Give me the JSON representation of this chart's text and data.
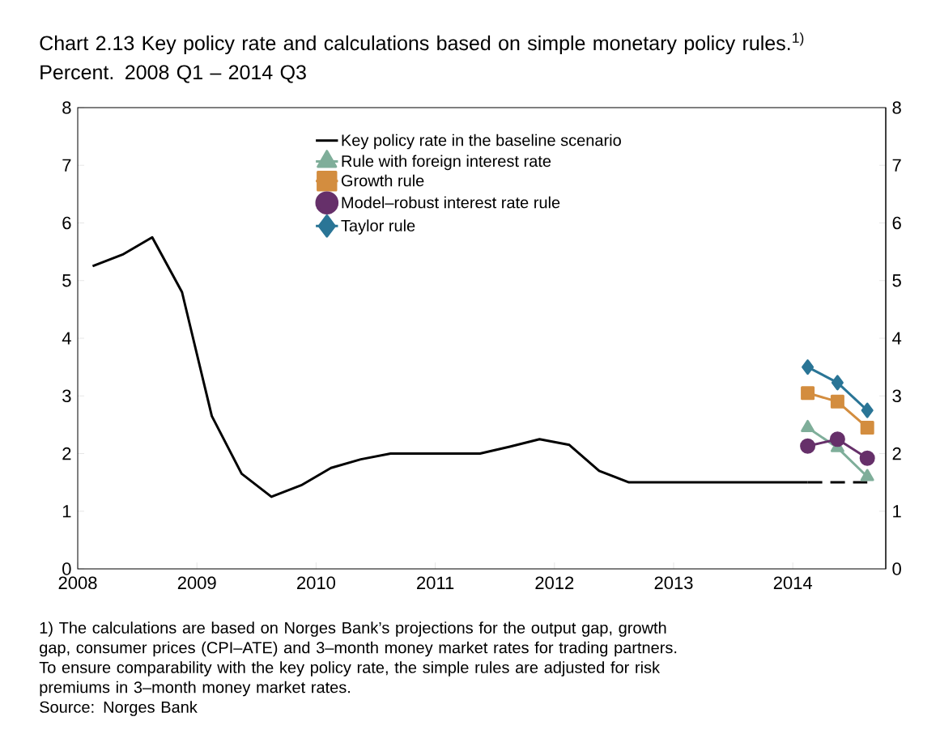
{
  "chart_data": {
    "type": "line",
    "title": "Chart 2.13 Key policy rate and calculations based on simple monetary policy rules.$^{1)}$ Percent. 2008 Q1 – 2014 Q3",
    "annotations": [
      "1) The calculations are based on Norges Bank’s projections for the output gap, growth gap, consumer prices (CPI–ATE) and 3–month money market rates for trading partners. To ensure comparability with the key policy rate, the simple rules are adjusted for risk premiums in 3–month money market rates.",
      "Source: Norges Bank"
    ],
    "x": [
      2008.125,
      2008.375,
      2008.625,
      2008.875,
      2009.125,
      2009.375,
      2009.625,
      2009.875,
      2010.125,
      2010.375,
      2010.625,
      2010.875,
      2011.125,
      2011.375,
      2011.625,
      2011.875,
      2012.125,
      2012.375,
      2012.625,
      2012.875,
      2013.125,
      2013.375,
      2013.625,
      2013.875,
      2014.125
    ],
    "series": [
      {
        "name": "Key policy rate in the baseline scenario",
        "color": "#000000",
        "marker": "none",
        "line_style": "solid",
        "values": [
          5.25,
          5.45,
          5.75,
          4.8,
          2.65,
          1.65,
          1.25,
          1.45,
          1.75,
          1.9,
          2.0,
          2.0,
          2.0,
          2.0,
          2.12,
          2.25,
          2.15,
          1.7,
          1.5,
          1.5,
          1.5,
          1.5,
          1.5,
          1.5,
          1.5
        ]
      },
      {
        "color": "#000000",
        "marker": "none",
        "line_style": "dashed",
        "x": [
          2014.125,
          2014.375,
          2014.625
        ],
        "values": [
          1.5,
          1.5,
          1.5
        ]
      },
      {
        "name": "Rule with foreign interest rate",
        "color": "#7fae9a",
        "marker": "triangle",
        "line_style": "solid",
        "x": [
          2014.125,
          2014.375,
          2014.625
        ],
        "values": [
          2.45,
          2.1,
          1.6
        ]
      },
      {
        "name": "Growth rule",
        "color": "#d38d3f",
        "marker": "square",
        "line_style": "solid",
        "x": [
          2014.125,
          2014.375,
          2014.625
        ],
        "values": [
          3.05,
          2.9,
          2.45
        ]
      },
      {
        "name": "Model–robust interest rate rule",
        "color": "#66306a",
        "marker": "circle",
        "line_style": "solid",
        "x": [
          2014.125,
          2014.375,
          2014.625
        ],
        "values": [
          2.13,
          2.25,
          1.92
        ]
      },
      {
        "name": "Taylor rule",
        "color": "#2a7596",
        "marker": "diamond",
        "line_style": "solid",
        "x": [
          2014.125,
          2014.375,
          2014.625
        ],
        "values": [
          3.5,
          3.23,
          2.75
        ]
      }
    ],
    "xlim": [
      2008,
      2014.78
    ],
    "xticks": [
      2008,
      2009,
      2010,
      2011,
      2012,
      2013,
      2014
    ],
    "ylim": [
      0,
      8
    ],
    "yticks": [
      0,
      1,
      2,
      3,
      4,
      5,
      6,
      7,
      8
    ],
    "y2lim": [
      0,
      8
    ],
    "y2ticks": [
      0,
      1,
      2,
      3,
      4,
      5,
      6,
      7,
      8
    ],
    "legend": "top"
  }
}
